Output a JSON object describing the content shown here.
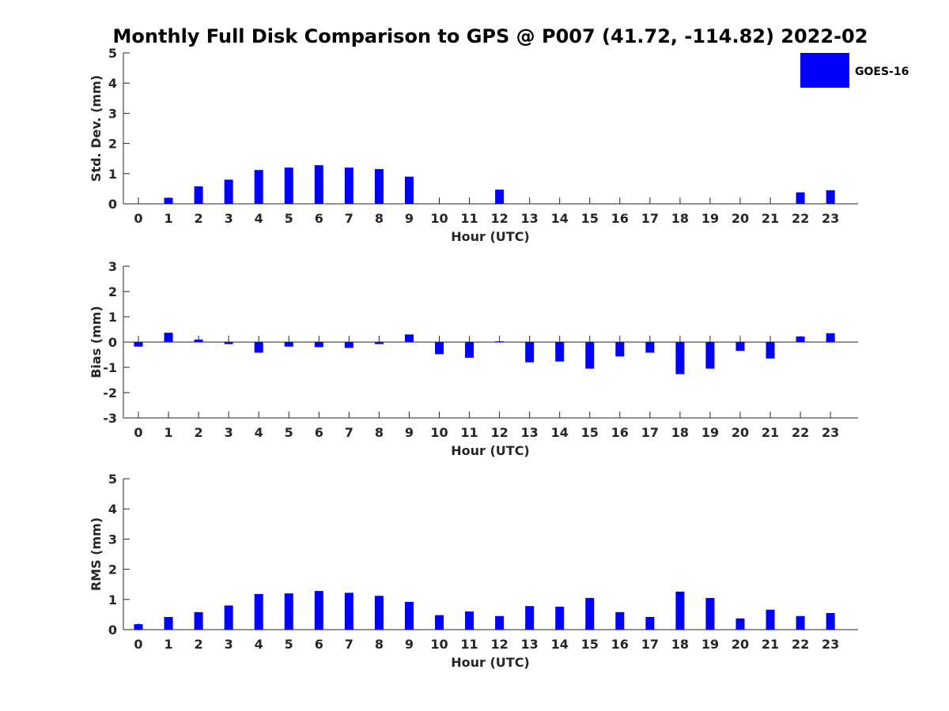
{
  "chart_data": {
    "type": "bar",
    "title": "Monthly Full Disk Comparison to GPS @ P007 (41.72, -114.82) 2022-02",
    "legend": {
      "label": "GOES-16",
      "placement": "top-right"
    },
    "series_color": "#0000ff",
    "hours": [
      "0",
      "1",
      "2",
      "3",
      "4",
      "5",
      "6",
      "7",
      "8",
      "9",
      "10",
      "11",
      "12",
      "13",
      "14",
      "15",
      "16",
      "17",
      "18",
      "19",
      "20",
      "21",
      "22",
      "23"
    ],
    "panels": [
      {
        "id": "stddev",
        "xlabel": "Hour (UTC)",
        "ylabel": "Std. Dev. (mm)",
        "ylim": [
          0,
          5
        ],
        "yticks": [
          "0",
          "1",
          "2",
          "3",
          "4",
          "5"
        ],
        "values": [
          0,
          0.2,
          0.58,
          0.8,
          1.12,
          1.2,
          1.28,
          1.2,
          1.15,
          0.9,
          0,
          0,
          0.47,
          0,
          0,
          0,
          0,
          0,
          0,
          0,
          0,
          0,
          0.38,
          0.45
        ]
      },
      {
        "id": "bias",
        "xlabel": "Hour (UTC)",
        "ylabel": "Bias (mm)",
        "ylim": [
          -3,
          3
        ],
        "yticks": [
          "-3",
          "-2",
          "-1",
          "0",
          "1",
          "2",
          "3"
        ],
        "values": [
          -0.18,
          0.37,
          0.1,
          -0.08,
          -0.42,
          -0.18,
          -0.2,
          -0.23,
          -0.08,
          0.3,
          -0.48,
          -0.62,
          0.03,
          -0.8,
          -0.77,
          -1.05,
          -0.57,
          -0.42,
          -1.27,
          -1.05,
          -0.35,
          -0.65,
          0.22,
          0.35
        ]
      },
      {
        "id": "rms",
        "xlabel": "Hour (UTC)",
        "ylabel": "RMS (mm)",
        "ylim": [
          0,
          5
        ],
        "yticks": [
          "0",
          "1",
          "2",
          "3",
          "4",
          "5"
        ],
        "values": [
          0.18,
          0.42,
          0.58,
          0.8,
          1.18,
          1.2,
          1.28,
          1.22,
          1.12,
          0.92,
          0.48,
          0.6,
          0.45,
          0.78,
          0.76,
          1.05,
          0.58,
          0.42,
          1.26,
          1.05,
          0.37,
          0.66,
          0.45,
          0.55
        ]
      }
    ]
  }
}
